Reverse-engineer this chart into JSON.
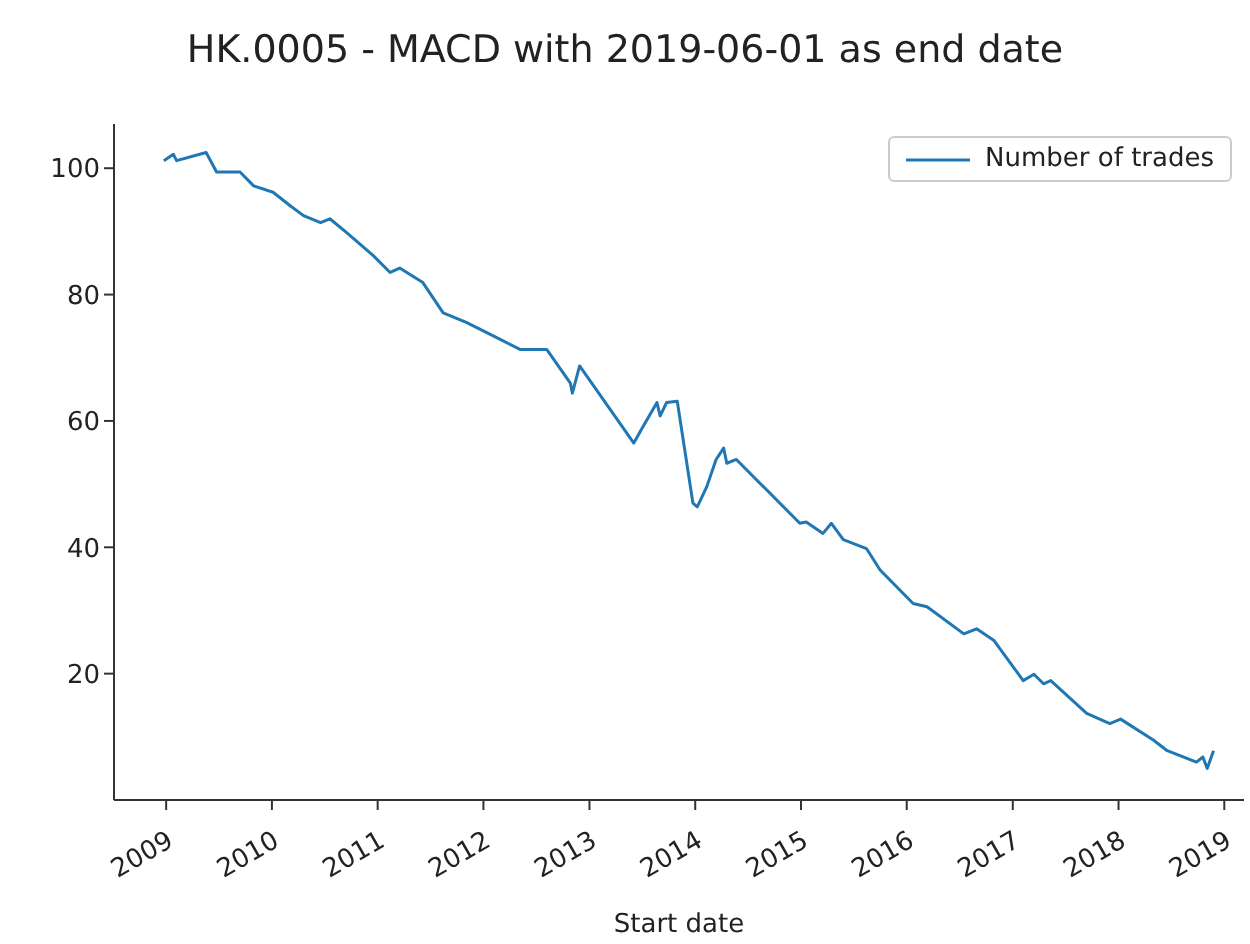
{
  "chart_data": {
    "type": "line",
    "title": "HK.0005 - MACD with 2019-06-01 as end date",
    "xlabel": "Start date",
    "x": [
      "2008-12-24",
      "2009-01-26",
      "2009-02-06",
      "2009-05-19",
      "2009-06-24",
      "2009-09-13",
      "2009-10-30",
      "2010-01-05",
      "2010-03-04",
      "2010-04-20",
      "2010-06-18",
      "2010-07-20",
      "2010-09-16",
      "2010-12-16",
      "2011-02-13",
      "2011-03-18",
      "2011-06-06",
      "2011-08-15",
      "2011-11-03",
      "2012-02-28",
      "2012-05-08",
      "2012-08-07",
      "2012-10-27",
      "2012-11-03",
      "2012-11-28",
      "2013-06-03",
      "2013-07-06",
      "2013-08-22",
      "2013-09-02",
      "2013-09-24",
      "2013-10-31",
      "2013-12-24",
      "2014-01-08",
      "2014-02-10",
      "2014-03-14",
      "2014-04-09",
      "2014-04-20",
      "2014-05-23",
      "2014-12-28",
      "2015-01-19",
      "2015-03-18",
      "2015-04-16",
      "2015-05-27",
      "2015-08-15",
      "2015-10-01",
      "2016-01-23",
      "2016-03-11",
      "2016-07-16",
      "2016-08-29",
      "2016-10-27",
      "2017-02-06",
      "2017-03-15",
      "2017-04-17",
      "2017-05-12",
      "2017-09-13",
      "2017-12-02",
      "2018-01-08",
      "2018-05-01",
      "2018-06-18",
      "2018-09-27",
      "2018-10-19",
      "2018-11-03",
      "2018-11-25"
    ],
    "series": [
      {
        "name": "Number of trades",
        "color": "#1f77b4",
        "values": [
          101.2,
          102.2,
          101.2,
          102.5,
          99.4,
          99.4,
          97.2,
          96.2,
          94.1,
          92.5,
          91.4,
          92,
          89.8,
          86.2,
          83.5,
          84.2,
          81.9,
          77.1,
          75.6,
          72.9,
          71.3,
          71.3,
          66,
          64.4,
          68.7,
          56.5,
          59.2,
          62.9,
          60.8,
          62.9,
          63.1,
          47,
          46.4,
          49.6,
          53.9,
          55.7,
          53.3,
          53.9,
          43.8,
          44,
          42.2,
          43.8,
          41.2,
          39.8,
          36.4,
          31.1,
          30.6,
          26.3,
          27.1,
          25.3,
          18.9,
          19.9,
          18.4,
          18.9,
          13.7,
          12.1,
          12.8,
          9.5,
          7.8,
          6,
          6.8,
          5,
          7.8
        ]
      }
    ],
    "xlim": [
      "2008-07-05",
      "2019-03-10"
    ],
    "xticks": [
      {
        "value": "2009-01-01",
        "label": "2009"
      },
      {
        "value": "2010-01-01",
        "label": "2010"
      },
      {
        "value": "2011-01-01",
        "label": "2011"
      },
      {
        "value": "2012-01-01",
        "label": "2012"
      },
      {
        "value": "2013-01-01",
        "label": "2013"
      },
      {
        "value": "2014-01-01",
        "label": "2014"
      },
      {
        "value": "2015-01-01",
        "label": "2015"
      },
      {
        "value": "2016-01-01",
        "label": "2016"
      },
      {
        "value": "2017-01-01",
        "label": "2017"
      },
      {
        "value": "2018-01-01",
        "label": "2018"
      },
      {
        "value": "2019-01-01",
        "label": "2019"
      }
    ],
    "ylim": [
      0,
      107
    ],
    "yticks": [
      20,
      40,
      60,
      80,
      100
    ],
    "legend": "top right",
    "grid": false,
    "marker": "none",
    "line_style": "solid"
  }
}
